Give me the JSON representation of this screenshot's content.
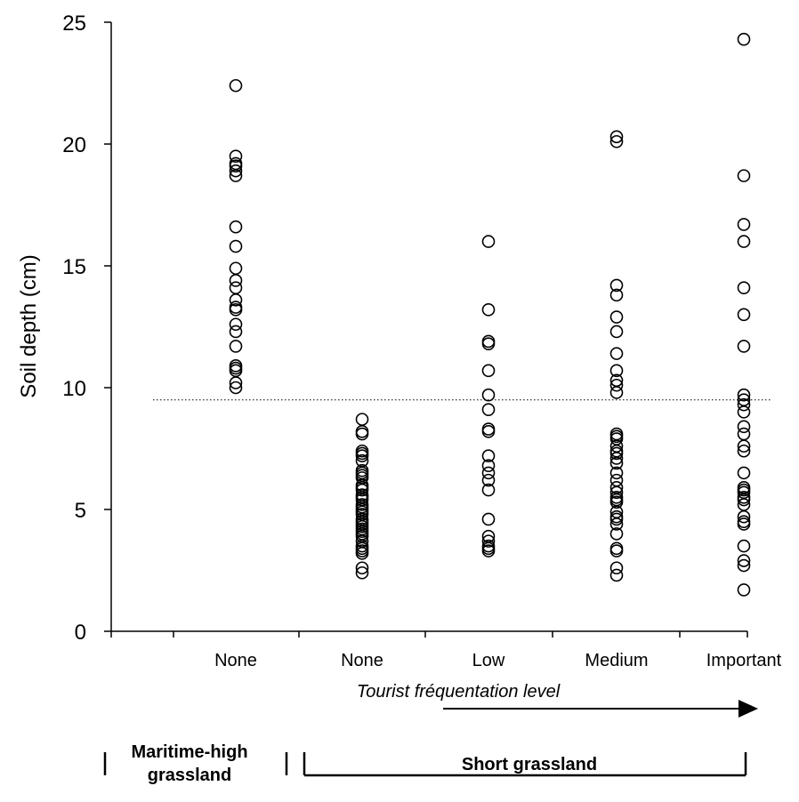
{
  "chart_data": {
    "type": "scatter",
    "ylabel": "Soil depth  (cm)",
    "xlabel": "Tourist fréquentation level",
    "ylim": [
      0,
      25
    ],
    "yticks": [
      "0",
      "5",
      "10",
      "15",
      "20",
      "25"
    ],
    "categories": [
      "None",
      "None",
      "Low",
      "Medium",
      "Important"
    ],
    "reference_line": {
      "y": 9.5,
      "style": "dotted"
    },
    "groups": [
      {
        "label_line1": "Maritime-high",
        "label_line2": "grassland",
        "categories": [
          0
        ]
      },
      {
        "label_line1": "Short grassland",
        "label_line2": "",
        "categories": [
          1,
          2,
          3,
          4
        ]
      }
    ],
    "series": [
      {
        "category": "None",
        "values": [
          22.4,
          19.5,
          19.2,
          19.1,
          18.9,
          18.7,
          16.6,
          15.8,
          14.9,
          14.4,
          14.1,
          13.6,
          13.3,
          13.2,
          12.6,
          12.3,
          11.7,
          10.9,
          10.8,
          10.7,
          10.2,
          10.0
        ]
      },
      {
        "category": "None",
        "values": [
          8.7,
          8.2,
          8.1,
          7.4,
          7.3,
          7.2,
          7.0,
          6.6,
          6.5,
          6.4,
          6.3,
          6.0,
          5.9,
          5.8,
          5.6,
          5.5,
          5.4,
          5.2,
          5.1,
          5.0,
          4.9,
          4.8,
          4.6,
          4.5,
          4.4,
          4.3,
          4.2,
          4.1,
          4.0,
          3.9,
          3.7,
          3.5,
          3.4,
          3.3,
          3.2,
          2.6,
          2.4
        ]
      },
      {
        "category": "Low",
        "values": [
          16.0,
          13.2,
          11.9,
          11.8,
          10.7,
          9.7,
          9.1,
          8.3,
          8.2,
          7.2,
          6.8,
          6.5,
          6.2,
          5.8,
          4.6,
          3.9,
          3.7,
          3.5,
          3.4,
          3.3
        ]
      },
      {
        "category": "Medium",
        "values": [
          20.3,
          20.1,
          14.2,
          13.8,
          12.9,
          12.3,
          11.4,
          10.7,
          10.3,
          10.1,
          9.8,
          8.1,
          8.0,
          7.9,
          7.6,
          7.4,
          7.3,
          7.1,
          6.9,
          6.5,
          6.2,
          5.9,
          5.7,
          5.5,
          5.4,
          5.3,
          4.9,
          4.7,
          4.6,
          4.4,
          4.0,
          3.4,
          3.3,
          2.6,
          2.3
        ]
      },
      {
        "category": "Important",
        "values": [
          24.3,
          18.7,
          16.7,
          16.0,
          14.1,
          13.0,
          11.7,
          9.7,
          9.5,
          9.3,
          9.0,
          8.4,
          8.1,
          7.6,
          7.4,
          6.5,
          5.9,
          5.8,
          5.7,
          5.5,
          5.4,
          5.2,
          4.7,
          4.5,
          4.4,
          3.5,
          2.9,
          2.7,
          1.7
        ]
      }
    ]
  }
}
